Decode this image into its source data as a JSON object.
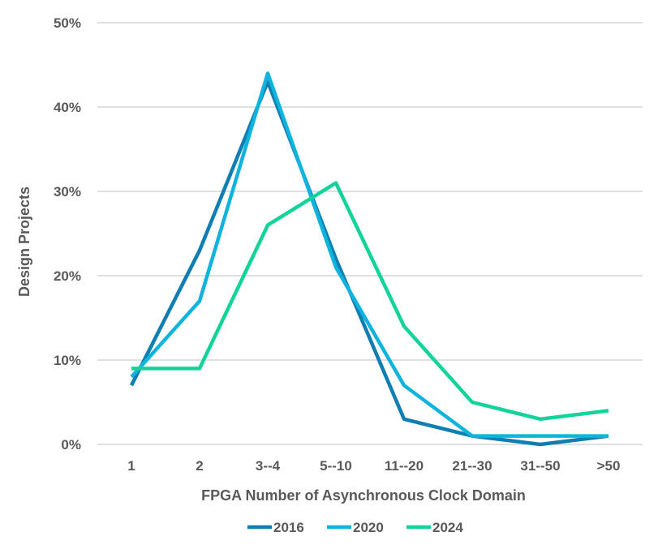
{
  "chart_data": {
    "type": "line",
    "xlabel": "FPGA Number of Asynchronous Clock Domain",
    "ylabel": "Design Projects",
    "categories": [
      "1",
      "2",
      "3--4",
      "5--10",
      "11--20",
      "21--30",
      "31--50",
      ">50"
    ],
    "ylim": [
      0,
      50
    ],
    "yticks": [
      0,
      10,
      20,
      30,
      40,
      50
    ],
    "ytick_labels": [
      "0%",
      "10%",
      "20%",
      "30%",
      "40%",
      "50%"
    ],
    "grid": true,
    "legend_position": "bottom",
    "series": [
      {
        "name": "2016",
        "color": "#0f7eb2",
        "values": [
          7,
          23,
          43,
          22,
          3,
          1,
          0,
          1
        ]
      },
      {
        "name": "2020",
        "color": "#0fb4dd",
        "values": [
          8,
          17,
          44,
          21,
          7,
          1,
          1,
          1
        ]
      },
      {
        "name": "2024",
        "color": "#12d49a",
        "values": [
          9,
          9,
          26,
          31,
          14,
          5,
          3,
          4
        ]
      }
    ]
  }
}
